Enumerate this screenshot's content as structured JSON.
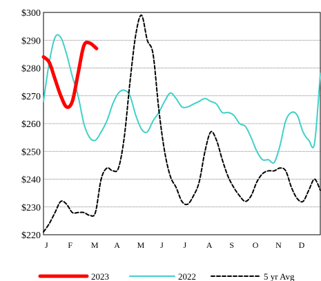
{
  "chart_data": {
    "type": "line",
    "title": "",
    "xlabel": "",
    "ylabel": "",
    "ylim": [
      220,
      300
    ],
    "y_tick_values": [
      220,
      230,
      240,
      250,
      260,
      270,
      280,
      290,
      300
    ],
    "y_tick_labels": [
      "$220",
      "$230",
      "$240",
      "$250",
      "$260",
      "$270",
      "$280",
      "$290",
      "$300"
    ],
    "x_tick_labels": [
      "J",
      "F",
      "M",
      "A",
      "M",
      "J",
      "J",
      "A",
      "S",
      "O",
      "N",
      "D"
    ],
    "xlim": [
      0,
      12
    ],
    "grid": "horizontal-dotted",
    "legend_position": "bottom",
    "series": [
      {
        "name": "2023",
        "color": "#ff0000",
        "style": "solid-thick",
        "x": [
          0.0,
          0.25,
          0.5,
          0.75,
          1.0,
          1.25,
          1.5,
          1.75,
          2.0,
          2.3
        ],
        "y": [
          284,
          282,
          276,
          270,
          266,
          268,
          278,
          288,
          289,
          287
        ]
      },
      {
        "name": "2022",
        "color": "#40d0c8",
        "style": "solid",
        "x": [
          0.0,
          0.25,
          0.5,
          0.75,
          1.0,
          1.25,
          1.5,
          1.75,
          2.0,
          2.25,
          2.5,
          2.75,
          3.0,
          3.25,
          3.5,
          3.75,
          4.0,
          4.25,
          4.5,
          4.75,
          5.0,
          5.25,
          5.5,
          5.75,
          6.0,
          6.25,
          6.5,
          6.75,
          7.0,
          7.25,
          7.5,
          7.75,
          8.0,
          8.25,
          8.5,
          8.75,
          9.0,
          9.25,
          9.5,
          9.75,
          10.0,
          10.25,
          10.5,
          10.75,
          11.0,
          11.25,
          11.5,
          11.75,
          12.0
        ],
        "y": [
          268,
          282,
          291,
          291,
          285,
          277,
          270,
          260,
          255,
          254,
          257,
          261,
          267,
          271,
          272,
          270,
          263,
          258,
          257,
          261,
          264,
          268,
          271,
          269,
          266,
          266,
          267,
          268,
          269,
          268,
          267,
          264,
          264,
          263,
          260,
          259,
          255,
          250,
          247,
          247,
          246,
          252,
          261,
          264,
          263,
          257,
          254,
          253,
          278
        ]
      },
      {
        "name": "5 yr Avg",
        "color": "#000000",
        "style": "dashed",
        "x": [
          0.0,
          0.25,
          0.5,
          0.75,
          1.0,
          1.25,
          1.5,
          1.75,
          2.0,
          2.25,
          2.5,
          2.75,
          3.0,
          3.25,
          3.5,
          3.75,
          4.0,
          4.25,
          4.5,
          4.75,
          5.0,
          5.25,
          5.5,
          5.75,
          6.0,
          6.25,
          6.5,
          6.75,
          7.0,
          7.25,
          7.5,
          7.75,
          8.0,
          8.25,
          8.5,
          8.75,
          9.0,
          9.25,
          9.5,
          9.75,
          10.0,
          10.25,
          10.5,
          10.75,
          11.0,
          11.25,
          11.5,
          11.75,
          12.0
        ],
        "y": [
          221,
          224,
          228,
          232,
          231,
          228,
          228,
          228,
          227,
          228,
          240,
          244,
          243,
          244,
          255,
          275,
          292,
          299,
          290,
          285,
          265,
          250,
          241,
          237,
          232,
          231,
          234,
          239,
          250,
          257,
          254,
          247,
          241,
          237,
          234,
          232,
          234,
          239,
          242,
          243,
          243,
          244,
          243,
          237,
          233,
          232,
          236,
          240,
          236
        ]
      }
    ]
  }
}
